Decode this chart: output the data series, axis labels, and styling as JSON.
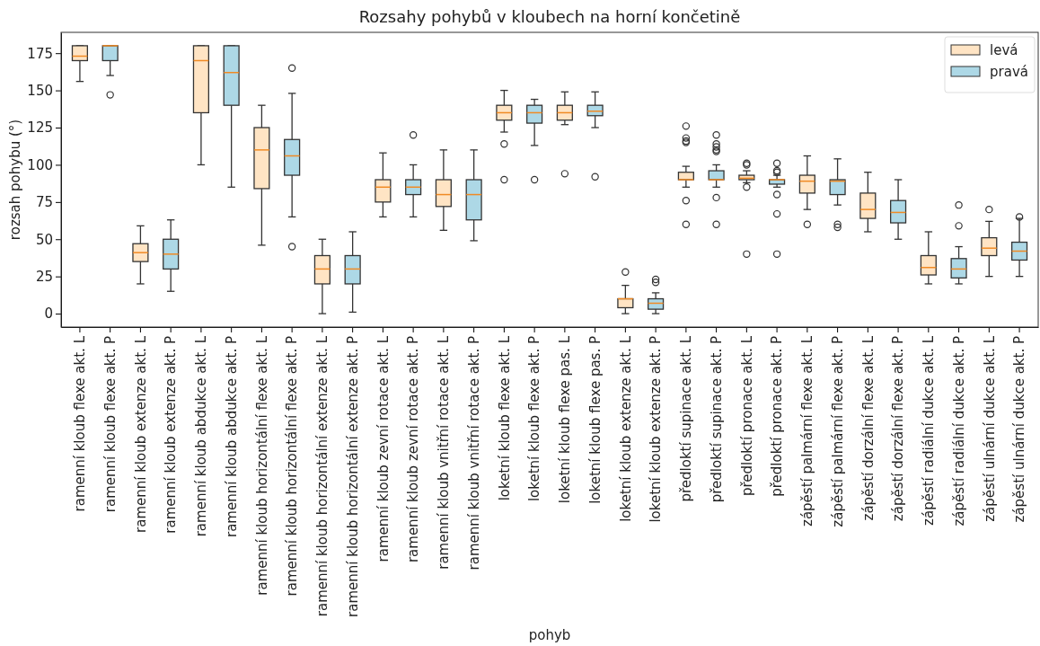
{
  "chart_data": {
    "type": "box",
    "title": "Rozsahy pohybů v kloubech na horní končetině",
    "xlabel": "pohyb",
    "ylabel": "rozsah pohybu (°)",
    "categories": [
      "ramenní kloub flexe akt. L",
      "ramenní kloub flexe akt. P",
      "ramenní kloub extenze akt. L",
      "ramenní kloub extenze akt. P",
      "ramenní kloub abdukce akt. L",
      "ramenní kloub abdukce akt. P",
      "ramenní kloub horizontální flexe akt. L",
      "ramenní kloub horizontální flexe akt. P",
      "ramenní kloub horizontální extenze akt. L",
      "ramenní kloub horizontální extenze akt. P",
      "ramenní kloub zevní rotace akt. L",
      "ramenní kloub zevní rotace akt. P",
      "ramenní kloub vnitřní rotace akt. L",
      "ramenní kloub vnitřní rotace akt. P",
      "loketní kloub flexe akt. L",
      "loketní kloub flexe akt. P",
      "loketní kloub flexe pas. L",
      "loketní kloub flexe pas. P",
      "loketní kloub extenze akt. L",
      "loketní kloub extenze akt. P",
      "předloktí supinace akt. L",
      "předloktí supinace akt. P",
      "předloktí pronace akt. L",
      "předloktí pronace akt. P",
      "zápěstí palmární flexe akt. L",
      "zápěstí palmární flexe akt. P",
      "zápěstí dorzální flexe akt. L",
      "zápěstí dorzální flexe akt. P",
      "zápěstí radiální dukce akt. L",
      "zápěstí radiální dukce akt. P",
      "zápěstí ulnární dukce akt. L",
      "zápěstí ulnární dukce akt. P"
    ],
    "ylim": [
      -9,
      189
    ],
    "yticks": [
      0,
      25,
      50,
      75,
      100,
      125,
      150,
      175
    ],
    "legend": "top right",
    "grid": false,
    "series": [
      {
        "name": "levá",
        "color": "#ffe4c4",
        "x": [
          "ramenní kloub flexe akt. L",
          "ramenní kloub extenze akt. L",
          "ramenní kloub abdukce akt. L",
          "ramenní kloub horizontální flexe akt. L",
          "ramenní kloub horizontální extenze akt. L",
          "ramenní kloub zevní rotace akt. L",
          "ramenní kloub vnitřní rotace akt. L",
          "loketní kloub flexe akt. L",
          "loketní kloub flexe pas. L",
          "loketní kloub extenze akt. L",
          "předloktí supinace akt. L",
          "předloktí pronace akt. L",
          "zápěstí palmární flexe akt. L",
          "zápěstí dorzální flexe akt. L",
          "zápěstí radiální dukce akt. L",
          "zápěstí ulnární dukce akt. L"
        ],
        "boxes": [
          {
            "low": 156,
            "q1": 170,
            "median": 173,
            "q3": 180,
            "high": 180
          },
          {
            "low": 20,
            "q1": 35,
            "median": 41,
            "q3": 47,
            "high": 59
          },
          {
            "low": 100,
            "q1": 135,
            "median": 170,
            "q3": 180,
            "high": 180
          },
          {
            "low": 46,
            "q1": 84,
            "median": 110,
            "q3": 125,
            "high": 140
          },
          {
            "low": 0,
            "q1": 20,
            "median": 30,
            "q3": 39,
            "high": 50
          },
          {
            "low": 65,
            "q1": 75,
            "median": 85,
            "q3": 90,
            "high": 108
          },
          {
            "low": 56,
            "q1": 72,
            "median": 80,
            "q3": 90,
            "high": 110
          },
          {
            "low": 122,
            "q1": 130,
            "median": 135,
            "q3": 140,
            "high": 150,
            "outliers": [
              114,
              90
            ]
          },
          {
            "low": 127,
            "q1": 130,
            "median": 135,
            "q3": 140,
            "high": 149,
            "outliers": [
              94
            ]
          },
          {
            "low": 0,
            "q1": 4,
            "median": 10,
            "q3": 10,
            "high": 19,
            "outliers": [
              28
            ]
          },
          {
            "low": 85,
            "q1": 90,
            "median": 90,
            "q3": 95,
            "high": 99,
            "outliers": [
              126,
              118,
              116,
              115,
              76,
              60
            ]
          },
          {
            "low": 88,
            "q1": 90,
            "median": 91,
            "q3": 93,
            "high": 96,
            "outliers": [
              101,
              100,
              85,
              40
            ]
          },
          {
            "low": 70,
            "q1": 81,
            "median": 89,
            "q3": 93,
            "high": 106,
            "outliers": [
              60
            ]
          },
          {
            "low": 55,
            "q1": 64,
            "median": 70,
            "q3": 81,
            "high": 95
          },
          {
            "low": 20,
            "q1": 26,
            "median": 31,
            "q3": 39,
            "high": 55
          },
          {
            "low": 25,
            "q1": 39,
            "median": 44,
            "q3": 51,
            "high": 62,
            "outliers": [
              70
            ]
          }
        ]
      },
      {
        "name": "pravá",
        "color": "#add8e6",
        "x": [
          "ramenní kloub flexe akt. P",
          "ramenní kloub extenze akt. P",
          "ramenní kloub abdukce akt. P",
          "ramenní kloub horizontální flexe akt. P",
          "ramenní kloub horizontální extenze akt. P",
          "ramenní kloub zevní rotace akt. P",
          "ramenní kloub vnitřní rotace akt. P",
          "loketní kloub flexe akt. P",
          "loketní kloub flexe pas. P",
          "loketní kloub extenze akt. P",
          "předloktí supinace akt. P",
          "předloktí pronace akt. P",
          "zápěstí palmární flexe akt. P",
          "zápěstí dorzální flexe akt. P",
          "zápěstí radiální dukce akt. P",
          "zápěstí ulnární dukce akt. P"
        ],
        "boxes": [
          {
            "low": 160,
            "q1": 170,
            "median": 180,
            "q3": 180,
            "high": 180,
            "outliers": [
              147
            ]
          },
          {
            "low": 15,
            "q1": 30,
            "median": 40,
            "q3": 50,
            "high": 63
          },
          {
            "low": 85,
            "q1": 140,
            "median": 162,
            "q3": 180,
            "high": 180
          },
          {
            "low": 65,
            "q1": 93,
            "median": 106,
            "q3": 117,
            "high": 148,
            "outliers": [
              165,
              45
            ]
          },
          {
            "low": 1,
            "q1": 20,
            "median": 30,
            "q3": 39,
            "high": 55
          },
          {
            "low": 65,
            "q1": 80,
            "median": 85,
            "q3": 90,
            "high": 100,
            "outliers": [
              120
            ]
          },
          {
            "low": 49,
            "q1": 63,
            "median": 80,
            "q3": 90,
            "high": 110
          },
          {
            "low": 113,
            "q1": 128,
            "median": 135,
            "q3": 140,
            "high": 144,
            "outliers": [
              90
            ]
          },
          {
            "low": 125,
            "q1": 133,
            "median": 136,
            "q3": 140,
            "high": 149,
            "outliers": [
              92
            ]
          },
          {
            "low": 0,
            "q1": 3,
            "median": 7,
            "q3": 10,
            "high": 14,
            "outliers": [
              23,
              21
            ]
          },
          {
            "low": 85,
            "q1": 90,
            "median": 90,
            "q3": 96,
            "high": 100,
            "outliers": [
              120,
              114,
              112,
              110,
              109,
              78,
              60
            ]
          },
          {
            "low": 85,
            "q1": 87,
            "median": 90,
            "q3": 90,
            "high": 93,
            "outliers": [
              101,
              96,
              95,
              80,
              67,
              40
            ]
          },
          {
            "low": 73,
            "q1": 80,
            "median": 89,
            "q3": 90,
            "high": 104,
            "outliers": [
              60,
              58
            ]
          },
          {
            "low": 50,
            "q1": 61,
            "median": 68,
            "q3": 76,
            "high": 90
          },
          {
            "low": 20,
            "q1": 24,
            "median": 30,
            "q3": 37,
            "high": 45,
            "outliers": [
              73,
              59
            ]
          },
          {
            "low": 25,
            "q1": 36,
            "median": 42,
            "q3": 48,
            "high": 64,
            "outliers": [
              65
            ]
          }
        ]
      }
    ]
  }
}
